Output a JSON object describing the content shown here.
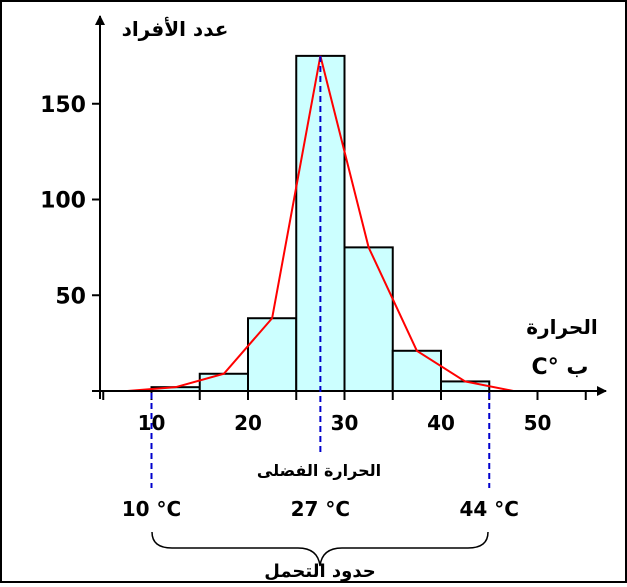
{
  "chart_data": {
    "type": "bar",
    "ylabel": "عدد الأفراد",
    "xlabel_line1": "الحرارة",
    "xlabel_line2": "ب °C",
    "x_ticks": [
      "10",
      "20",
      "30",
      "40",
      "50"
    ],
    "y_ticks": [
      "50",
      "100",
      "150"
    ],
    "xlim": [
      5,
      55
    ],
    "ylim": [
      0,
      190
    ],
    "bins": [
      {
        "x0": 10,
        "x1": 15,
        "value": 2
      },
      {
        "x0": 15,
        "x1": 20,
        "value": 9
      },
      {
        "x0": 20,
        "x1": 25,
        "value": 38
      },
      {
        "x0": 25,
        "x1": 30,
        "value": 175
      },
      {
        "x0": 30,
        "x1": 35,
        "value": 75
      },
      {
        "x0": 35,
        "x1": 40,
        "value": 21
      },
      {
        "x0": 40,
        "x1": 45,
        "value": 5
      }
    ],
    "polygon": {
      "x": [
        7.5,
        12.5,
        17.5,
        22.5,
        27.5,
        32.5,
        37.5,
        42.5,
        47.5
      ],
      "y": [
        0,
        2,
        9,
        38,
        175,
        75,
        21,
        5,
        0
      ]
    },
    "markers": [
      {
        "x": 10,
        "label": "10 °C"
      },
      {
        "x": 27.5,
        "label": "27 °C"
      },
      {
        "x": 45,
        "label": "44 °C"
      }
    ],
    "optimum_label": "الحرارة الفضلى",
    "tolerance_label": "حدود التحمل",
    "bar_fill": "#ccffff",
    "polygon_color": "#ff0000",
    "marker_color": "#0000cc"
  }
}
